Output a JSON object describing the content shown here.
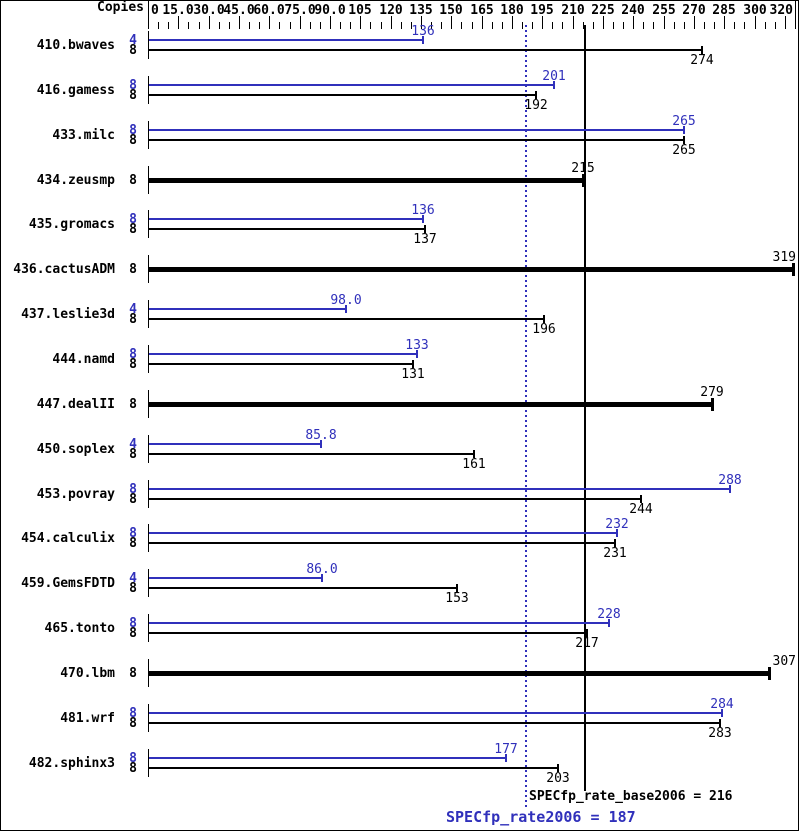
{
  "header": {
    "copies_label": "Copies"
  },
  "colors": {
    "peak": "#3030bb",
    "base": "#000000",
    "axis": "#000000",
    "background": "#ffffff"
  },
  "footer": {
    "base_summary": "SPECfp_rate_base2006 = 216",
    "peak_summary": "SPECfp_rate2006 = 187"
  },
  "chart_data": {
    "type": "bar",
    "orientation": "horizontal",
    "xlim": [
      0,
      320
    ],
    "axis_tick_labels": [
      {
        "value": 0,
        "label": "0"
      },
      {
        "value": 15,
        "label": "15.0"
      },
      {
        "value": 30,
        "label": "30.0"
      },
      {
        "value": 45,
        "label": "45.0"
      },
      {
        "value": 60,
        "label": "60.0"
      },
      {
        "value": 75,
        "label": "75.0"
      },
      {
        "value": 90,
        "label": "90.0"
      },
      {
        "value": 105,
        "label": "105"
      },
      {
        "value": 120,
        "label": "120"
      },
      {
        "value": 135,
        "label": "135"
      },
      {
        "value": 150,
        "label": "150"
      },
      {
        "value": 165,
        "label": "165"
      },
      {
        "value": 180,
        "label": "180"
      },
      {
        "value": 195,
        "label": "195"
      },
      {
        "value": 210,
        "label": "210"
      },
      {
        "value": 225,
        "label": "225"
      },
      {
        "value": 240,
        "label": "240"
      },
      {
        "value": 255,
        "label": "255"
      },
      {
        "value": 270,
        "label": "270"
      },
      {
        "value": 285,
        "label": "285"
      },
      {
        "value": 300,
        "label": "300"
      },
      {
        "value": 320,
        "label": "320"
      }
    ],
    "minor_tick_step": 5,
    "major_tick_step": 15,
    "reference_lines": [
      {
        "name": "base",
        "value": 216,
        "style": "solid",
        "color": "#000000"
      },
      {
        "name": "peak",
        "value": 187,
        "style": "dotted",
        "color": "#3030bb"
      }
    ],
    "benchmarks": [
      {
        "name": "410.bwaves",
        "bars": [
          {
            "series": "peak",
            "copies": "4",
            "value": 136,
            "label": "136"
          },
          {
            "series": "base",
            "copies": "8",
            "value": 274,
            "label": "274"
          }
        ]
      },
      {
        "name": "416.gamess",
        "bars": [
          {
            "series": "peak",
            "copies": "8",
            "value": 201,
            "label": "201"
          },
          {
            "series": "base",
            "copies": "8",
            "value": 192,
            "label": "192"
          }
        ]
      },
      {
        "name": "433.milc",
        "bars": [
          {
            "series": "peak",
            "copies": "8",
            "value": 265,
            "label": "265"
          },
          {
            "series": "base",
            "copies": "8",
            "value": 265,
            "label": "265"
          }
        ]
      },
      {
        "name": "434.zeusmp",
        "bars": [
          {
            "series": "both",
            "copies": "8",
            "value": 215,
            "label": "215"
          }
        ]
      },
      {
        "name": "435.gromacs",
        "bars": [
          {
            "series": "peak",
            "copies": "8",
            "value": 136,
            "label": "136"
          },
          {
            "series": "base",
            "copies": "8",
            "value": 137,
            "label": "137"
          }
        ]
      },
      {
        "name": "436.cactusADM",
        "bars": [
          {
            "series": "both",
            "copies": "8",
            "value": 319,
            "label": "319"
          }
        ]
      },
      {
        "name": "437.leslie3d",
        "bars": [
          {
            "series": "peak",
            "copies": "4",
            "value": 98.0,
            "label": "98.0"
          },
          {
            "series": "base",
            "copies": "8",
            "value": 196,
            "label": "196"
          }
        ]
      },
      {
        "name": "444.namd",
        "bars": [
          {
            "series": "peak",
            "copies": "8",
            "value": 133,
            "label": "133"
          },
          {
            "series": "base",
            "copies": "8",
            "value": 131,
            "label": "131"
          }
        ]
      },
      {
        "name": "447.dealII",
        "bars": [
          {
            "series": "both",
            "copies": "8",
            "value": 279,
            "label": "279"
          }
        ]
      },
      {
        "name": "450.soplex",
        "bars": [
          {
            "series": "peak",
            "copies": "4",
            "value": 85.8,
            "label": "85.8"
          },
          {
            "series": "base",
            "copies": "8",
            "value": 161,
            "label": "161"
          }
        ]
      },
      {
        "name": "453.povray",
        "bars": [
          {
            "series": "peak",
            "copies": "8",
            "value": 288,
            "label": "288"
          },
          {
            "series": "base",
            "copies": "8",
            "value": 244,
            "label": "244"
          }
        ]
      },
      {
        "name": "454.calculix",
        "bars": [
          {
            "series": "peak",
            "copies": "8",
            "value": 232,
            "label": "232"
          },
          {
            "series": "base",
            "copies": "8",
            "value": 231,
            "label": "231"
          }
        ]
      },
      {
        "name": "459.GemsFDTD",
        "bars": [
          {
            "series": "peak",
            "copies": "4",
            "value": 86.0,
            "label": "86.0"
          },
          {
            "series": "base",
            "copies": "8",
            "value": 153,
            "label": "153"
          }
        ]
      },
      {
        "name": "465.tonto",
        "bars": [
          {
            "series": "peak",
            "copies": "8",
            "value": 228,
            "label": "228"
          },
          {
            "series": "base",
            "copies": "8",
            "value": 217,
            "label": "217"
          }
        ]
      },
      {
        "name": "470.lbm",
        "bars": [
          {
            "series": "both",
            "copies": "8",
            "value": 307,
            "label": "307"
          }
        ]
      },
      {
        "name": "481.wrf",
        "bars": [
          {
            "series": "peak",
            "copies": "8",
            "value": 284,
            "label": "284"
          },
          {
            "series": "base",
            "copies": "8",
            "value": 283,
            "label": "283"
          }
        ]
      },
      {
        "name": "482.sphinx3",
        "bars": [
          {
            "series": "peak",
            "copies": "8",
            "value": 177,
            "label": "177"
          },
          {
            "series": "base",
            "copies": "8",
            "value": 203,
            "label": "203"
          }
        ]
      }
    ]
  }
}
